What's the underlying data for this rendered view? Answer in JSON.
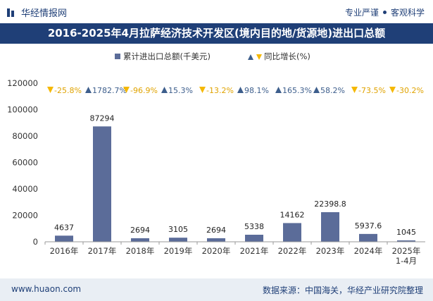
{
  "header": {
    "brand": "华经情报网",
    "tags": [
      "专业严谨",
      "客观科学"
    ]
  },
  "footer": {
    "website": "www.huaon.com",
    "source": "数据来源：中国海关，华经产业研究院整理"
  },
  "colors": {
    "bar": "#5b6c99",
    "up_marker": "#3d5e8c",
    "down_marker": "#f5b800",
    "growth_text": "#3d5e8c",
    "title_bg": "#1f3f77"
  },
  "chart_data": {
    "type": "bar",
    "title": "2016-2025年4月拉萨经济技术开发区(境内目的地/货源地)进出口总额",
    "categories": [
      "2016年",
      "2017年",
      "2018年",
      "2019年",
      "2020年",
      "2021年",
      "2022年",
      "2023年",
      "2024年",
      "2025年\n1-4月"
    ],
    "series": [
      {
        "name": "累计进出口总额(千美元)",
        "values": [
          4637,
          87294,
          2694,
          3105,
          2694,
          5338,
          14162,
          22398.8,
          5937.6,
          1045
        ],
        "labels": [
          "4637",
          "87294",
          "2694",
          "3105",
          "2694",
          "5338",
          "14162",
          "22398.8",
          "5937.6",
          "1045"
        ]
      },
      {
        "name": "同比增长(%)",
        "values": [
          -25.8,
          1782.7,
          -96.9,
          15.3,
          -13.2,
          98.1,
          165.3,
          58.2,
          -73.5,
          -30.2
        ],
        "labels": [
          "-25.8%",
          "1782.7%",
          "-96.9%",
          "15.3%",
          "-13.2%",
          "98.1%",
          "165.3%",
          "58.2%",
          "-73.5%",
          "-30.2%"
        ]
      }
    ],
    "yticks": [
      "0",
      "20000",
      "40000",
      "60000",
      "80000",
      "100000",
      "120000"
    ],
    "ylim": [
      0,
      120000
    ],
    "grid": false,
    "legend_position": "top-center"
  }
}
